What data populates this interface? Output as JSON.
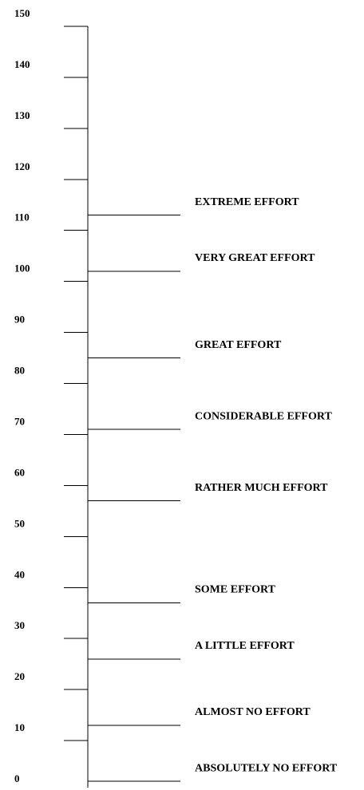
{
  "scale": {
    "ylim": [
      0,
      150
    ],
    "ticks": [
      0,
      10,
      20,
      30,
      40,
      50,
      60,
      70,
      80,
      90,
      100,
      110,
      120,
      130,
      140,
      150
    ],
    "anchors": [
      {
        "label": "ABSOLUTELY NO EFFORT",
        "value": 2
      },
      {
        "label": "ALMOST NO EFFORT",
        "value": 13
      },
      {
        "label": "A LITTLE EFFORT",
        "value": 26
      },
      {
        "label": "SOME EFFORT",
        "value": 37
      },
      {
        "label": "RATHER MUCH EFFORT",
        "value": 57
      },
      {
        "label": "CONSIDERABLE EFFORT",
        "value": 71
      },
      {
        "label": "GREAT EFFORT",
        "value": 85
      },
      {
        "label": "VERY GREAT EFFORT",
        "value": 102
      },
      {
        "label": "EXTREME EFFORT",
        "value": 113
      }
    ]
  }
}
